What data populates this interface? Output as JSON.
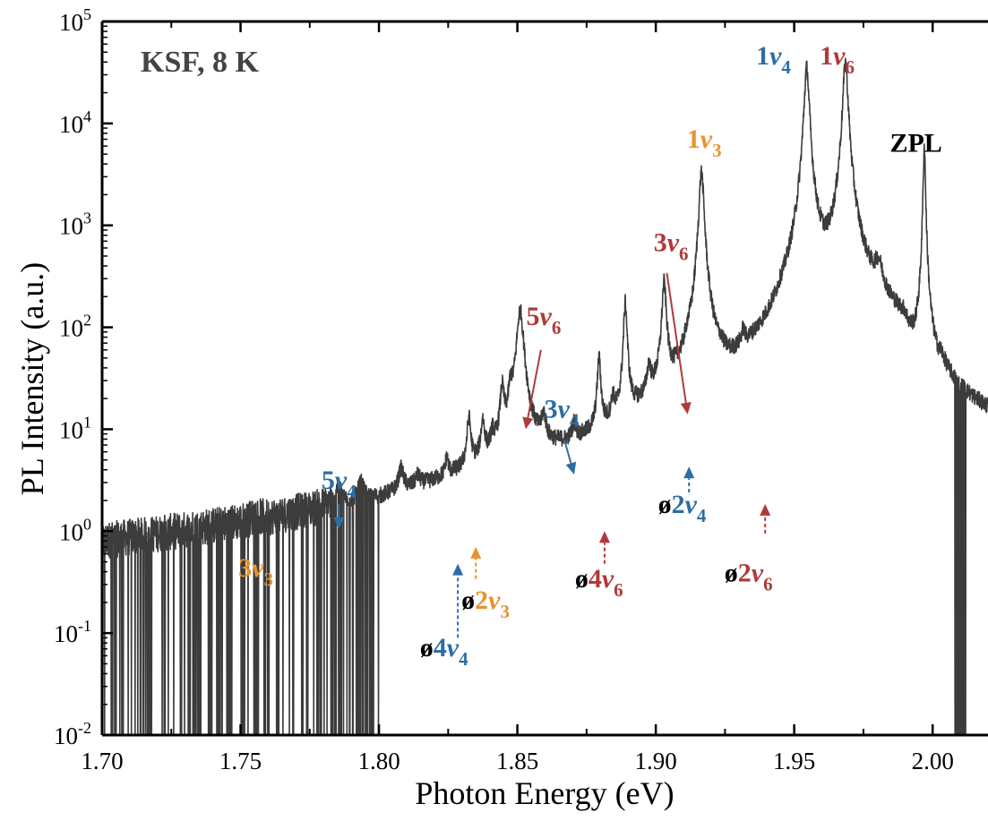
{
  "chart_data": {
    "type": "line",
    "title": "KSF, 8 K",
    "xlabel": "Photon Energy (eV)",
    "ylabel": "PL Intensity (a.u.)",
    "xlim": [
      1.7,
      2.02
    ],
    "ylim": [
      0.01,
      100000
    ],
    "yscale": "log",
    "grid": false,
    "x_ticks": [
      "1.70",
      "1.75",
      "1.80",
      "1.85",
      "1.90",
      "1.95",
      "2.00"
    ],
    "y_ticks": [
      {
        "base": "10",
        "exp": "-2"
      },
      {
        "base": "10",
        "exp": "-1"
      },
      {
        "base": "10",
        "exp": "0"
      },
      {
        "base": "10",
        "exp": "1"
      },
      {
        "base": "10",
        "exp": "2"
      },
      {
        "base": "10",
        "exp": "3"
      },
      {
        "base": "10",
        "exp": "4"
      },
      {
        "base": "10",
        "exp": "5"
      }
    ],
    "line_color": "#3c3c3c",
    "series": [
      {
        "background": [
          [
            1.7,
            0.03
          ],
          [
            1.72,
            0.03
          ],
          [
            1.74,
            0.035
          ],
          [
            1.75,
            0.04
          ],
          [
            1.76,
            0.04
          ],
          [
            1.77,
            0.05
          ],
          [
            1.78,
            0.07
          ],
          [
            1.785,
            0.08
          ],
          [
            1.79,
            0.05
          ],
          [
            1.797,
            0.02
          ],
          [
            1.8,
            0.02
          ],
          [
            1.803,
            0.08
          ],
          [
            1.81,
            0.12
          ],
          [
            1.82,
            0.25
          ],
          [
            1.83,
            0.45
          ],
          [
            1.835,
            0.6
          ],
          [
            1.84,
            0.8
          ],
          [
            1.85,
            1.2
          ],
          [
            1.855,
            0.9
          ],
          [
            1.86,
            0.9
          ],
          [
            1.865,
            0.6
          ],
          [
            1.87,
            0.5
          ],
          [
            1.875,
            0.55
          ],
          [
            1.88,
            0.7
          ],
          [
            1.885,
            0.6
          ],
          [
            1.89,
            1.5
          ],
          [
            1.895,
            3
          ],
          [
            1.9,
            5
          ],
          [
            1.905,
            5
          ],
          [
            1.91,
            5
          ],
          [
            1.915,
            5
          ],
          [
            1.92,
            3
          ],
          [
            1.925,
            1.5
          ],
          [
            1.928,
            0.7
          ],
          [
            1.93,
            2
          ],
          [
            1.935,
            3
          ],
          [
            1.94,
            2
          ],
          [
            1.945,
            20
          ],
          [
            1.95,
            30
          ],
          [
            1.955,
            40
          ],
          [
            1.96,
            80
          ],
          [
            1.965,
            100
          ],
          [
            1.97,
            120
          ],
          [
            1.975,
            100
          ],
          [
            1.98,
            80
          ],
          [
            1.985,
            70
          ],
          [
            1.99,
            60
          ],
          [
            1.993,
            10
          ],
          [
            1.996,
            0.05
          ],
          [
            2.0,
            0.1
          ],
          [
            2.003,
            10
          ],
          [
            2.007,
            2
          ],
          [
            2.01,
            0.3
          ],
          [
            2.015,
            0.2
          ],
          [
            2.02,
            0.2
          ]
        ],
        "peaks": [
          {
            "x": 1.7555,
            "y": 0.17,
            "w": 0.0012
          },
          {
            "x": 1.7855,
            "y": 1.0,
            "w": 0.0012
          },
          {
            "x": 1.7935,
            "y": 1.0,
            "w": 0.0012
          },
          {
            "x": 1.808,
            "y": 1.6,
            "w": 0.001
          },
          {
            "x": 1.814,
            "y": 0.7,
            "w": 0.001
          },
          {
            "x": 1.8245,
            "y": 1.8,
            "w": 0.0006
          },
          {
            "x": 1.8325,
            "y": 8.5,
            "w": 0.0007
          },
          {
            "x": 1.8375,
            "y": 7,
            "w": 0.0007
          },
          {
            "x": 1.841,
            "y": 3,
            "w": 0.0007
          },
          {
            "x": 1.8445,
            "y": 18,
            "w": 0.0007
          },
          {
            "x": 1.8475,
            "y": 14,
            "w": 0.0007
          },
          {
            "x": 1.851,
            "y": 140,
            "w": 0.0012
          },
          {
            "x": 1.8595,
            "y": 6,
            "w": 0.0008
          },
          {
            "x": 1.8705,
            "y": 3.5,
            "w": 0.0007
          },
          {
            "x": 1.8795,
            "y": 40,
            "w": 0.0006
          },
          {
            "x": 1.8845,
            "y": 8,
            "w": 0.0007
          },
          {
            "x": 1.889,
            "y": 160,
            "w": 0.0006
          },
          {
            "x": 1.8975,
            "y": 20,
            "w": 0.0007
          },
          {
            "x": 1.903,
            "y": 250,
            "w": 0.0007
          },
          {
            "x": 1.9115,
            "y": 15,
            "w": 0.0007
          },
          {
            "x": 1.9165,
            "y": 3300,
            "w": 0.0008
          },
          {
            "x": 1.9235,
            "y": 8,
            "w": 0.0007
          },
          {
            "x": 1.9315,
            "y": 25,
            "w": 0.0007
          },
          {
            "x": 1.9545,
            "y": 35000,
            "w": 0.0008
          },
          {
            "x": 1.9685,
            "y": 40000,
            "w": 0.0008
          },
          {
            "x": 1.9805,
            "y": 200,
            "w": 0.0015
          },
          {
            "x": 1.997,
            "y": 6000,
            "w": 0.00035
          }
        ]
      }
    ],
    "annotations": [
      {
        "sym": "",
        "num": "1",
        "sub": "4",
        "color": "#2e6da4",
        "lx": 1.9425,
        "ly": 38000
      },
      {
        "sym": "",
        "num": "1",
        "sub": "6",
        "color": "#b03a3a",
        "lx": 1.9655,
        "ly": 38000
      },
      {
        "sym": "",
        "num": "ZPL",
        "sub": "",
        "color": "#000000",
        "lx": 1.994,
        "ly": 5300,
        "plain": true
      },
      {
        "sym": "",
        "num": "1",
        "sub": "3",
        "color": "#e8922e",
        "lx": 1.9175,
        "ly": 5800
      },
      {
        "sym": "",
        "num": "3",
        "sub": "6",
        "color": "#b03a3a",
        "lx": 1.9055,
        "ly": 560,
        "arrow": {
          "x1": 1.904,
          "y1": 340,
          "x2": 1.9115,
          "y2": 14,
          "dashed": false
        }
      },
      {
        "sym": "",
        "num": "5",
        "sub": "6",
        "color": "#b03a3a",
        "lx": 1.8595,
        "ly": 105,
        "arrow": {
          "x1": 1.8585,
          "y1": 60,
          "x2": 1.853,
          "y2": 10,
          "dashed": false
        }
      },
      {
        "sym": "",
        "num": "3",
        "sub": "4",
        "color": "#2e6da4",
        "lx": 1.866,
        "ly": 13,
        "arrow": {
          "x1": 1.867,
          "y1": 7.8,
          "x2": 1.8705,
          "y2": 3.6,
          "dashed": false
        }
      },
      {
        "sym": "",
        "num": "5",
        "sub": "4",
        "color": "#2e6da4",
        "lx": 1.7855,
        "ly": 2.6,
        "arrow": {
          "x1": 1.7855,
          "y1": 1.85,
          "x2": 1.7855,
          "y2": 1.05,
          "dashed": false
        }
      },
      {
        "sym": "",
        "num": "3",
        "sub": "3",
        "color": "#e8922e",
        "lx": 1.7555,
        "ly": 0.36
      },
      {
        "sym": "ø",
        "num": "4",
        "sub": "4",
        "color": "#2e6da4",
        "lx": 1.8235,
        "ly": 0.059,
        "arrow": {
          "x1": 1.8285,
          "y1": 0.09,
          "x2": 1.8285,
          "y2": 0.48,
          "dashed": true
        }
      },
      {
        "sym": "ø",
        "num": "2",
        "sub": "3",
        "color": "#e8922e",
        "lx": 1.8385,
        "ly": 0.173,
        "arrow": {
          "x1": 1.835,
          "y1": 0.34,
          "x2": 1.835,
          "y2": 0.7,
          "dashed": true
        }
      },
      {
        "sym": "ø",
        "num": "4",
        "sub": "6",
        "color": "#b03a3a",
        "lx": 1.8795,
        "ly": 0.28,
        "arrow": {
          "x1": 1.8815,
          "y1": 0.48,
          "x2": 1.8815,
          "y2": 1.0,
          "dashed": true
        }
      },
      {
        "sym": "ø",
        "num": "2",
        "sub": "4",
        "color": "#2e6da4",
        "lx": 1.9095,
        "ly": 1.5,
        "arrow": {
          "x1": 1.912,
          "y1": 2.4,
          "x2": 1.912,
          "y2": 4.3,
          "dashed": true
        }
      },
      {
        "sym": "ø",
        "num": "2",
        "sub": "6",
        "color": "#b03a3a",
        "lx": 1.9335,
        "ly": 0.32,
        "arrow": {
          "x1": 1.9395,
          "y1": 0.95,
          "x2": 1.9395,
          "y2": 1.85,
          "dashed": true
        }
      }
    ]
  }
}
